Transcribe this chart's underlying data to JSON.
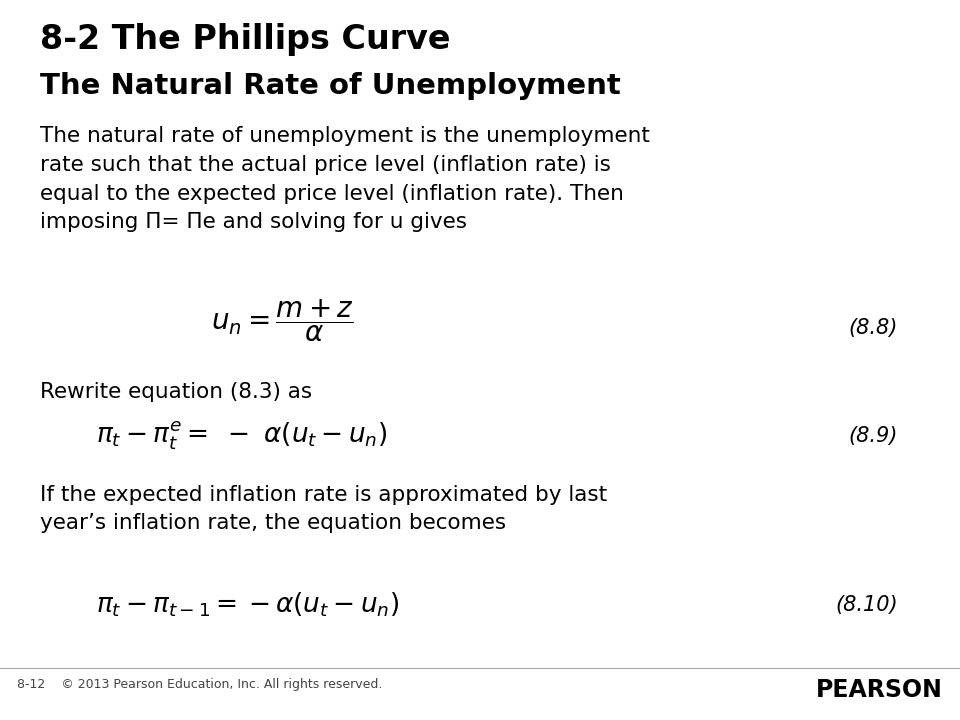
{
  "title_line1": "8-2 The Phillips Curve",
  "title_line2": "The Natural Rate of Unemployment",
  "paragraph1": "The natural rate of unemployment is the unemployment\nrate such that the actual price level (inflation rate) is\nequal to the expected price level (inflation rate). Then\nimposing Π= Πe and solving for u gives",
  "eq1_label": "(8.8)",
  "eq1_latex": "$u_n = \\dfrac{m + z}{\\alpha}$",
  "paragraph2": "Rewrite equation (8.3) as",
  "eq2_label": "(8.9)",
  "eq2_latex": "$\\pi_t - \\pi_t^e = \\ -\\ \\alpha(u_t - u_n)$",
  "paragraph3": "If the expected inflation rate is approximated by last\nyear’s inflation rate, the equation becomes",
  "eq3_label": "(8.10)",
  "eq3_latex": "$\\pi_t - \\pi_{t-1} = -\\alpha(u_t - u_n)$",
  "footer_left": "8-12    © 2013 Pearson Education, Inc. All rights reserved.",
  "footer_right": "PEARSON",
  "bg_color": "#ffffff",
  "text_color": "#000000",
  "title1_fontsize": 24,
  "title2_fontsize": 21,
  "body_fontsize": 15.5,
  "eq_fontsize": 16,
  "label_fontsize": 15,
  "footer_fontsize": 9
}
